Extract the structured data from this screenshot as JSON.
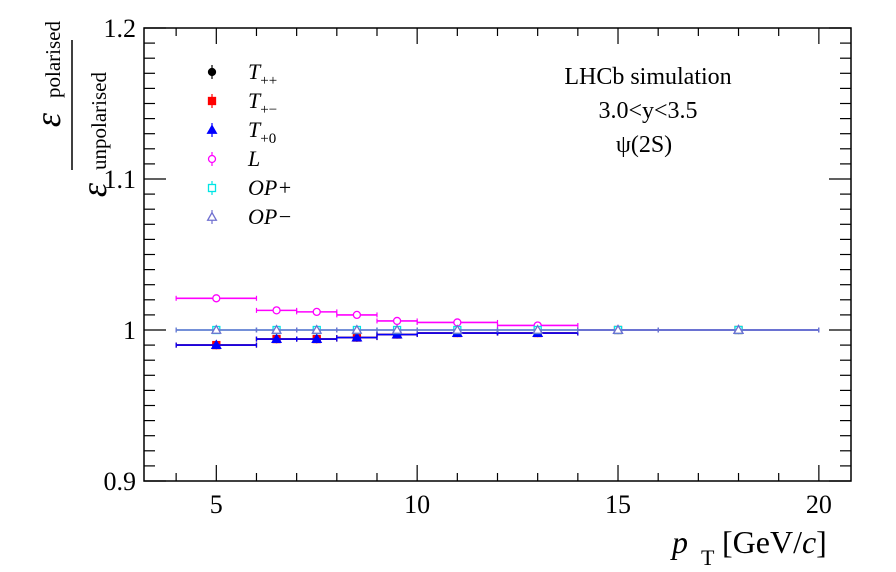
{
  "chart_data": {
    "type": "scatter",
    "title": "",
    "xlabel": "p_T [GeV/c]",
    "xlabel_parts": {
      "main": "p",
      "sub": "T",
      "unit": " [GeV/",
      "unit_italic": "c",
      "close": "]"
    },
    "ylabel": "ε_polarised / ε_unpolarised",
    "ylabel_parts": {
      "symbol": "ε",
      "num_sub": "polarised",
      "den_sub": "unpolarised"
    },
    "xlim": [
      3.2,
      20.8
    ],
    "ylim": [
      0.9,
      1.2
    ],
    "xticks": [
      5,
      10,
      15,
      20
    ],
    "xtick_labels": [
      "5",
      "10",
      "15",
      "20"
    ],
    "yticks": [
      0.9,
      1.0,
      1.1,
      1.2
    ],
    "ytick_labels": [
      "0.9",
      "1",
      "1.1",
      "1.2"
    ],
    "grid": false,
    "legend_position": "top-left",
    "annotations": [
      "LHCb simulation",
      "3.0<y<3.5",
      "ψ(2S)"
    ],
    "x_centers": [
      5,
      6.5,
      7.5,
      8.5,
      9.5,
      11,
      13,
      15,
      18
    ],
    "x_low": [
      4,
      6,
      7,
      8,
      9,
      10,
      12,
      14,
      16
    ],
    "x_high": [
      6,
      7,
      8,
      9,
      10,
      12,
      14,
      16,
      20
    ],
    "series": [
      {
        "name": "T_{++}",
        "label_main": "T",
        "label_sub": "++",
        "marker": "circle",
        "filled": true,
        "color": "#000000",
        "values": [
          0.99,
          0.994,
          0.994,
          0.995,
          0.997,
          0.998,
          0.998,
          1.0,
          1.0
        ]
      },
      {
        "name": "T_{+-}",
        "label_main": "T",
        "label_sub": "+−",
        "marker": "square",
        "filled": true,
        "color": "#ff0000",
        "values": [
          0.99,
          0.994,
          0.994,
          0.995,
          0.997,
          0.998,
          0.998,
          1.0,
          1.0
        ]
      },
      {
        "name": "T_{+0}",
        "label_main": "T",
        "label_sub": "+0",
        "marker": "triangle",
        "filled": true,
        "color": "#0000ff",
        "values": [
          0.99,
          0.994,
          0.994,
          0.995,
          0.997,
          0.998,
          0.998,
          1.0,
          1.0
        ]
      },
      {
        "name": "L",
        "label_main": "L",
        "label_sub": "",
        "marker": "circle",
        "filled": false,
        "color": "#ff00ff",
        "values": [
          1.021,
          1.013,
          1.012,
          1.01,
          1.006,
          1.005,
          1.003,
          1.0,
          1.0
        ]
      },
      {
        "name": "OP+",
        "label_main": "OP+",
        "label_sub": "",
        "marker": "square",
        "filled": false,
        "color": "#00e5e5",
        "values": [
          1.0,
          1.0,
          1.0,
          1.0,
          1.0,
          1.0,
          1.0,
          1.0,
          1.0
        ]
      },
      {
        "name": "OP−",
        "label_main": "OP−",
        "label_sub": "",
        "marker": "triangle",
        "filled": false,
        "color": "#7070d0",
        "values": [
          1.0,
          1.0,
          1.0,
          1.0,
          1.0,
          1.0,
          1.0,
          1.0,
          1.0
        ]
      }
    ]
  }
}
